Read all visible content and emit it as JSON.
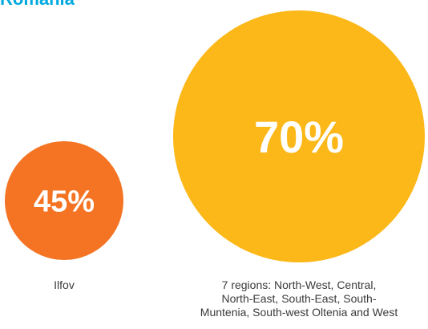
{
  "title": "Romania",
  "colors": {
    "title": "#00a9e0",
    "ilfov": "#f47423",
    "regions": "#fbb818"
  },
  "chart_data": {
    "type": "bubble",
    "unit": "%",
    "series": [
      {
        "category": "Ilfov",
        "value": 45,
        "value_label": "45%",
        "label_lines": [
          "Ilfov"
        ]
      },
      {
        "category": "7 regions: North-West, Central, North-East, South-East, South-Muntenia, South-west Oltenia and West",
        "value": 70,
        "value_label": "70%",
        "label_lines": [
          "7 regions: North-West, Central,",
          "North-East, South-East, South-",
          "Muntenia, South-west Oltenia and West"
        ]
      }
    ]
  }
}
